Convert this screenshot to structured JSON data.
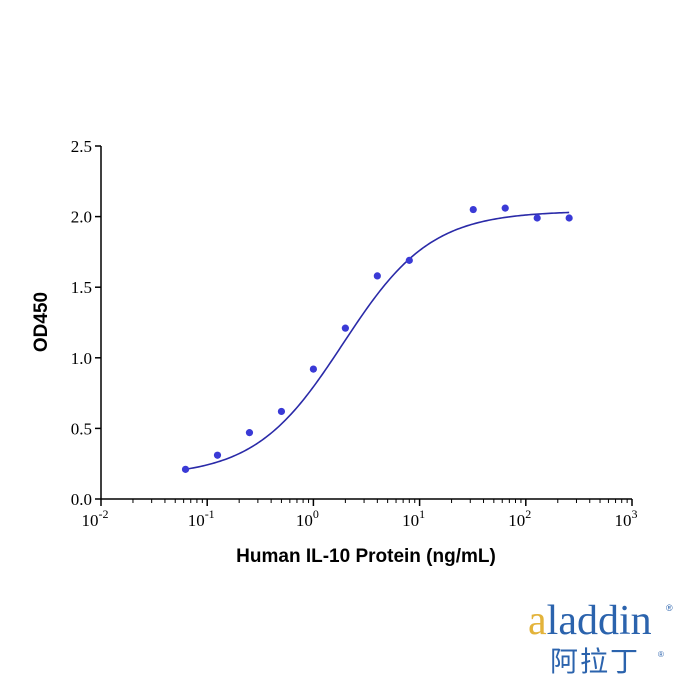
{
  "chart_data": {
    "type": "scatter",
    "xlabel": "Human IL-10 Protein (ng/mL)",
    "ylabel": "OD450",
    "xscale": "log",
    "xlim": [
      0.01,
      1000
    ],
    "ylim": [
      0,
      2.5
    ],
    "y_ticks": [
      "0.0",
      "0.5",
      "1.0",
      "1.5",
      "2.0",
      "2.5"
    ],
    "x_ticks": [
      {
        "base": "10",
        "exp": "-2"
      },
      {
        "base": "10",
        "exp": "-1"
      },
      {
        "base": "10",
        "exp": "0"
      },
      {
        "base": "10",
        "exp": "1"
      },
      {
        "base": "10",
        "exp": "2"
      },
      {
        "base": "10",
        "exp": "3"
      }
    ],
    "points": [
      {
        "x": 0.0625,
        "y": 0.21
      },
      {
        "x": 0.125,
        "y": 0.31
      },
      {
        "x": 0.25,
        "y": 0.47
      },
      {
        "x": 0.5,
        "y": 0.62
      },
      {
        "x": 1,
        "y": 0.92
      },
      {
        "x": 2,
        "y": 1.21
      },
      {
        "x": 4,
        "y": 1.58
      },
      {
        "x": 8,
        "y": 1.69
      },
      {
        "x": 32,
        "y": 2.05
      },
      {
        "x": 64,
        "y": 2.06
      },
      {
        "x": 128,
        "y": 1.99
      },
      {
        "x": 256,
        "y": 1.99
      }
    ],
    "fit": {
      "model": "4PL",
      "bottom": 0.16,
      "top": 2.04,
      "ec50": 1.9,
      "hill": 1.05
    },
    "marker_color": "#3a3ad6",
    "line_color": "#2a2aa8",
    "grid": false
  },
  "logo": {
    "en_accent": "a",
    "en_rest": "laddin",
    "cn": "阿拉丁",
    "reg": "®"
  }
}
